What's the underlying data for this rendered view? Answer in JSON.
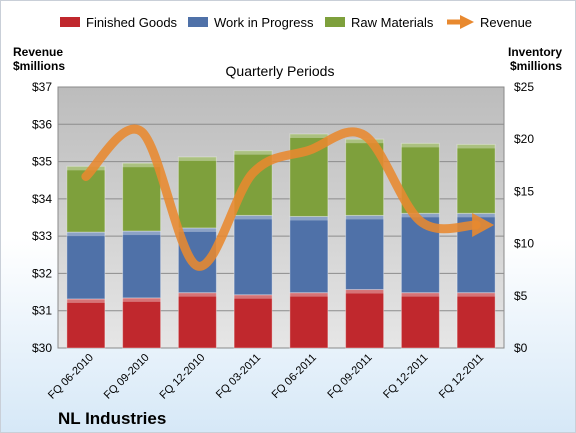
{
  "chart_data": {
    "type": "bar",
    "title": "Quarterly Periods",
    "company": "NL Industries",
    "left_axis_label": [
      "Revenue",
      "$millions"
    ],
    "right_axis_label": [
      "Inventory",
      "$millions"
    ],
    "categories": [
      "FQ 06-2010",
      "FQ 09-2010",
      "FQ 12-2010",
      "FQ 03-2011",
      "FQ 06-2011",
      "FQ 09-2011",
      "FQ 12-2011",
      "FQ 12-2011"
    ],
    "left_ticks": [
      "$30",
      "$31",
      "$32",
      "$33",
      "$34",
      "$35",
      "$36",
      "$37"
    ],
    "right_ticks": [
      "$0",
      "$5",
      "$10",
      "$15",
      "$20",
      "$25"
    ],
    "revenue_ylim": [
      30,
      37
    ],
    "inventory_ylim": [
      0,
      25
    ],
    "legend_position": "top",
    "stacked": true,
    "grid": true,
    "series": [
      {
        "name": "Finished Goods",
        "axis": "right",
        "type": "bar",
        "color": "#c0282d",
        "values": [
          4.7,
          4.8,
          5.3,
          5.1,
          5.3,
          5.6,
          5.3,
          5.3
        ]
      },
      {
        "name": "Work in Progress",
        "axis": "right",
        "type": "bar",
        "color": "#4f71a8",
        "values": [
          6.4,
          6.4,
          6.2,
          7.6,
          7.3,
          7.1,
          7.6,
          7.6
        ]
      },
      {
        "name": "Raw Materials",
        "axis": "right",
        "type": "bar",
        "color": "#7ea03c",
        "values": [
          6.3,
          6.5,
          6.8,
          6.2,
          7.9,
          7.3,
          6.7,
          6.6
        ]
      },
      {
        "name": "Revenue",
        "axis": "left",
        "type": "line",
        "color": "#e8892f",
        "values": [
          34.6,
          35.8,
          32.2,
          34.7,
          35.3,
          35.7,
          33.4,
          33.3
        ]
      }
    ]
  }
}
